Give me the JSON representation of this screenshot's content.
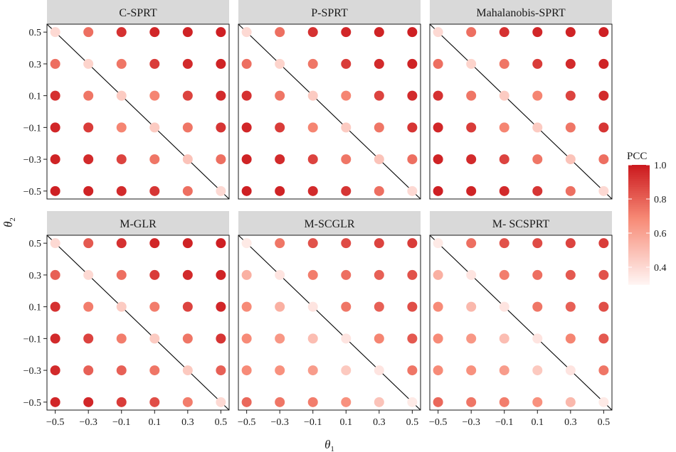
{
  "chart_data": {
    "type": "scatter",
    "facet_layout": "2 rows x 3 columns",
    "xlabel": "θ1",
    "ylabel": "θ2",
    "x_ticks": [
      -0.5,
      -0.3,
      -0.1,
      0.1,
      0.3,
      0.5
    ],
    "y_ticks": [
      -0.5,
      -0.3,
      -0.1,
      0.1,
      0.3,
      0.5
    ],
    "x_tick_labels": [
      "−0.5",
      "−0.3",
      "−0.1",
      "0.1",
      "0.3",
      "0.5"
    ],
    "y_tick_labels": [
      "−0.5",
      "−0.3",
      "−0.1",
      "0.1",
      "0.3",
      "0.5"
    ],
    "xlim": [
      -0.55,
      0.55
    ],
    "ylim": [
      -0.55,
      0.55
    ],
    "reference_line": {
      "from": [
        -0.55,
        0.55
      ],
      "to": [
        0.55,
        -0.55
      ],
      "color": "#000000"
    },
    "grid": false,
    "legend": {
      "title": "PCC",
      "position": "right",
      "range": [
        0.3,
        1.0
      ],
      "ticks": [
        0.4,
        0.6,
        0.8,
        1.0
      ],
      "tick_labels": [
        "0.4",
        "0.6",
        "0.8",
        "1.0"
      ],
      "color_low": "#fff5f3",
      "color_high": "#cb181d"
    },
    "value_grid_note": "values[i][j]: i indexes θ2 from 0.5 (top) to -0.5 (bottom); j indexes θ1 from -0.5 to 0.5",
    "panels": [
      {
        "title": "C-SPRT",
        "values": [
          [
            0.4,
            0.76,
            0.93,
            0.96,
            0.97,
            0.98
          ],
          [
            0.76,
            0.42,
            0.74,
            0.9,
            0.95,
            0.97
          ],
          [
            0.93,
            0.74,
            0.45,
            0.7,
            0.88,
            0.95
          ],
          [
            0.96,
            0.9,
            0.7,
            0.45,
            0.74,
            0.92
          ],
          [
            0.97,
            0.95,
            0.88,
            0.74,
            0.48,
            0.76
          ],
          [
            0.98,
            0.97,
            0.95,
            0.92,
            0.76,
            0.4
          ]
        ]
      },
      {
        "title": "P-SPRT",
        "values": [
          [
            0.4,
            0.76,
            0.93,
            0.96,
            0.97,
            0.98
          ],
          [
            0.76,
            0.42,
            0.74,
            0.9,
            0.95,
            0.97
          ],
          [
            0.93,
            0.74,
            0.45,
            0.7,
            0.88,
            0.95
          ],
          [
            0.96,
            0.9,
            0.7,
            0.45,
            0.74,
            0.92
          ],
          [
            0.97,
            0.95,
            0.88,
            0.74,
            0.48,
            0.76
          ],
          [
            0.98,
            0.97,
            0.95,
            0.92,
            0.76,
            0.4
          ]
        ]
      },
      {
        "title": "Mahalanobis-SPRT",
        "values": [
          [
            0.4,
            0.76,
            0.93,
            0.96,
            0.97,
            0.98
          ],
          [
            0.76,
            0.42,
            0.74,
            0.9,
            0.95,
            0.97
          ],
          [
            0.93,
            0.74,
            0.45,
            0.7,
            0.88,
            0.95
          ],
          [
            0.96,
            0.9,
            0.7,
            0.45,
            0.74,
            0.92
          ],
          [
            0.97,
            0.95,
            0.88,
            0.74,
            0.48,
            0.76
          ],
          [
            0.98,
            0.97,
            0.95,
            0.92,
            0.76,
            0.4
          ]
        ]
      },
      {
        "title": "M-GLR",
        "values": [
          [
            0.4,
            0.82,
            0.93,
            0.96,
            0.97,
            0.98
          ],
          [
            0.8,
            0.4,
            0.76,
            0.9,
            0.95,
            0.97
          ],
          [
            0.93,
            0.72,
            0.45,
            0.72,
            0.88,
            0.96
          ],
          [
            0.95,
            0.88,
            0.72,
            0.45,
            0.74,
            0.92
          ],
          [
            0.95,
            0.8,
            0.8,
            0.74,
            0.46,
            0.8
          ],
          [
            0.96,
            0.96,
            0.9,
            0.85,
            0.72,
            0.4
          ]
        ]
      },
      {
        "title": "M-SCGLR",
        "values": [
          [
            0.34,
            0.74,
            0.84,
            0.86,
            0.88,
            0.9
          ],
          [
            0.55,
            0.36,
            0.72,
            0.76,
            0.8,
            0.84
          ],
          [
            0.68,
            0.55,
            0.36,
            0.74,
            0.8,
            0.85
          ],
          [
            0.68,
            0.64,
            0.5,
            0.36,
            0.7,
            0.82
          ],
          [
            0.68,
            0.66,
            0.62,
            0.46,
            0.36,
            0.74
          ],
          [
            0.78,
            0.74,
            0.72,
            0.66,
            0.48,
            0.34
          ]
        ]
      },
      {
        "title": "M- SCSPRT",
        "values": [
          [
            0.34,
            0.76,
            0.84,
            0.86,
            0.88,
            0.9
          ],
          [
            0.55,
            0.36,
            0.72,
            0.76,
            0.82,
            0.84
          ],
          [
            0.68,
            0.52,
            0.36,
            0.74,
            0.8,
            0.85
          ],
          [
            0.68,
            0.64,
            0.5,
            0.36,
            0.7,
            0.82
          ],
          [
            0.68,
            0.66,
            0.62,
            0.46,
            0.36,
            0.74
          ],
          [
            0.78,
            0.74,
            0.72,
            0.66,
            0.52,
            0.34
          ]
        ]
      }
    ]
  }
}
